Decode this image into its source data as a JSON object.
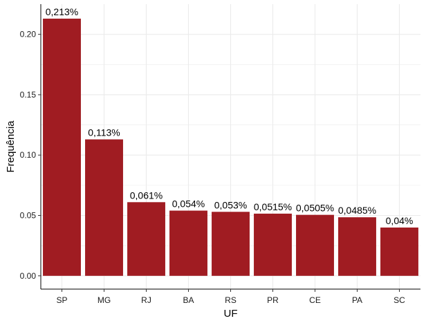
{
  "chart_data": {
    "type": "bar",
    "xlabel": "UF",
    "ylabel": "Frequência",
    "categories": [
      "SP",
      "MG",
      "RJ",
      "BA",
      "RS",
      "PR",
      "CE",
      "PA",
      "SC"
    ],
    "values": [
      0.213,
      0.113,
      0.061,
      0.054,
      0.053,
      0.0515,
      0.0505,
      0.0485,
      0.04
    ],
    "data_labels": [
      "0,213%",
      "0,113%",
      "0,061%",
      "0,054%",
      "0,053%",
      "0,0515%",
      "0,0505%",
      "0,0485%",
      "0,04%"
    ],
    "yticks": [
      0,
      0.05,
      0.1,
      0.15,
      0.2
    ],
    "ytick_labels": [
      "0.00",
      "0.05",
      "0.10",
      "0.15",
      "0.20"
    ],
    "ylim": [
      -0.011,
      0.225
    ],
    "grid": true,
    "bar_color": "#a01c22",
    "grid_color": "#ebebeb"
  }
}
